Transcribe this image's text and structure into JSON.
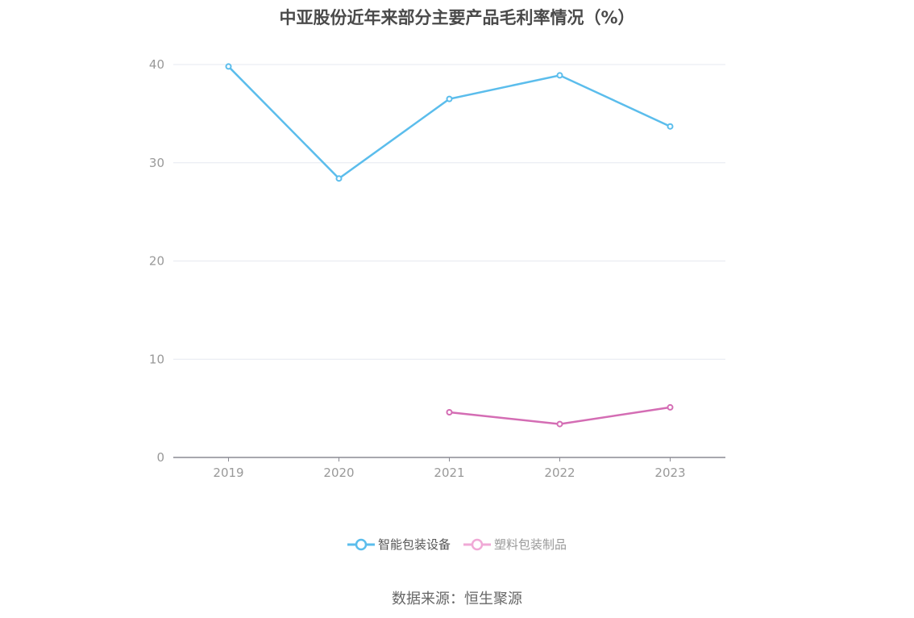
{
  "chart_data": {
    "type": "line",
    "title": "中亚股份近年来部分主要产品毛利率情况（%）",
    "categories": [
      "2019",
      "2020",
      "2021",
      "2022",
      "2023"
    ],
    "ylim": [
      0,
      40
    ],
    "yticks": [
      "0",
      "10",
      "20",
      "30",
      "40"
    ],
    "grid": true,
    "legend_position": "bottom",
    "series": [
      {
        "name": "智能包装设备",
        "color": "#5bbdec",
        "values": [
          39.8,
          28.4,
          36.5,
          38.9,
          33.7
        ]
      },
      {
        "name": "塑料包装制品",
        "color": "#d46db4",
        "legend_color": "#f0a9d6",
        "values": [
          null,
          null,
          4.6,
          3.4,
          5.1
        ]
      }
    ]
  },
  "source_text": "数据来源：恒生聚源"
}
